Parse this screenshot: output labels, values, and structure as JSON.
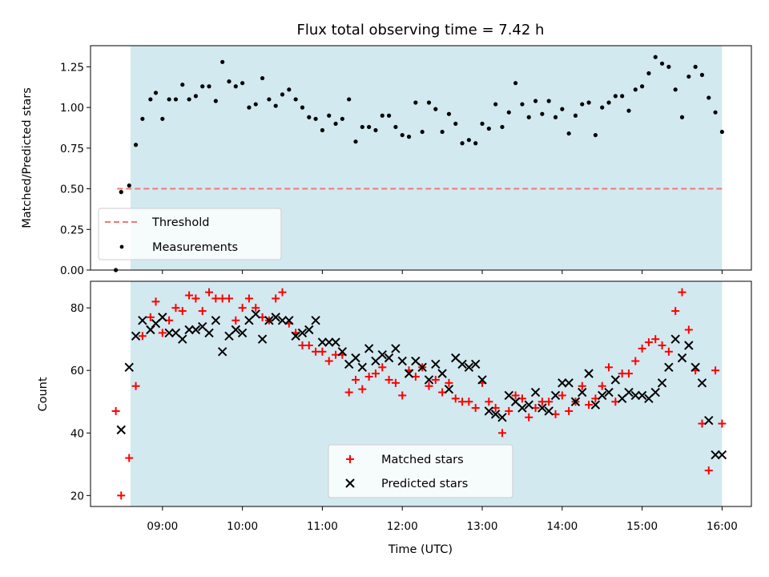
{
  "chart_data": [
    {
      "type": "scatter",
      "title": "Flux total observing time = 7.42 h",
      "ylabel": "Matched/Predicted stars",
      "xlabel": "",
      "x_axis": "time",
      "ylim": [
        0,
        1.38
      ],
      "yticks": [
        0.0,
        0.25,
        0.5,
        0.75,
        1.0,
        1.25
      ],
      "ytick_labels": [
        "0.00",
        "0.25",
        "0.50",
        "0.75",
        "1.00",
        "1.25"
      ],
      "shaded_interval": [
        "08:36",
        "16:00"
      ],
      "shade_color": "#d3e9f0",
      "legend_position": "lower left",
      "threshold": {
        "name": "Threshold",
        "value": 0.5,
        "x_range": [
          "08:26",
          "16:00"
        ],
        "color": "#f07878"
      },
      "series": [
        {
          "name": "Measurements",
          "marker": "dot",
          "color": "#000000",
          "x": [
            "08:25",
            "08:29",
            "08:35",
            "08:40",
            "08:45",
            "08:51",
            "08:55",
            "09:00",
            "09:05",
            "09:10",
            "09:15",
            "09:20",
            "09:25",
            "09:30",
            "09:35",
            "09:40",
            "09:45",
            "09:50",
            "09:55",
            "10:00",
            "10:05",
            "10:10",
            "10:15",
            "10:20",
            "10:25",
            "10:30",
            "10:35",
            "10:40",
            "10:45",
            "10:50",
            "10:55",
            "11:00",
            "11:05",
            "11:10",
            "11:15",
            "11:20",
            "11:25",
            "11:30",
            "11:35",
            "11:40",
            "11:45",
            "11:50",
            "11:55",
            "12:00",
            "12:05",
            "12:10",
            "12:15",
            "12:20",
            "12:25",
            "12:30",
            "12:35",
            "12:40",
            "12:45",
            "12:50",
            "12:55",
            "13:00",
            "13:05",
            "13:10",
            "13:15",
            "13:20",
            "13:25",
            "13:30",
            "13:35",
            "13:40",
            "13:45",
            "13:50",
            "13:55",
            "14:00",
            "14:05",
            "14:10",
            "14:15",
            "14:20",
            "14:25",
            "14:30",
            "14:35",
            "14:40",
            "14:45",
            "14:50",
            "14:55",
            "15:00",
            "15:05",
            "15:10",
            "15:15",
            "15:20",
            "15:25",
            "15:30",
            "15:35",
            "15:40",
            "15:45",
            "15:50",
            "15:55",
            "16:00"
          ],
          "y": [
            0.0,
            0.48,
            0.52,
            0.77,
            0.93,
            1.05,
            1.09,
            0.93,
            1.05,
            1.05,
            1.14,
            1.05,
            1.07,
            1.13,
            1.13,
            1.04,
            1.28,
            1.16,
            1.13,
            1.15,
            1.0,
            1.02,
            1.18,
            1.05,
            1.01,
            1.08,
            1.11,
            1.05,
            1.0,
            0.94,
            0.93,
            0.86,
            0.95,
            0.9,
            0.93,
            1.05,
            0.79,
            0.88,
            0.88,
            0.86,
            0.95,
            0.95,
            0.88,
            0.83,
            0.82,
            1.03,
            0.85,
            1.03,
            0.99,
            0.85,
            0.96,
            0.9,
            0.78,
            0.8,
            0.78,
            0.9,
            0.87,
            1.02,
            0.88,
            0.97,
            1.15,
            1.02,
            0.94,
            1.04,
            0.96,
            1.04,
            0.94,
            0.99,
            0.84,
            0.95,
            1.02,
            1.03,
            0.83,
            1.0,
            1.03,
            1.07,
            1.07,
            0.98,
            1.11,
            1.13,
            1.21,
            1.31,
            1.27,
            1.25,
            1.11,
            0.94,
            1.19,
            1.25,
            1.2,
            1.06,
            0.97,
            0.85
          ]
        }
      ]
    },
    {
      "type": "scatter",
      "title": "",
      "ylabel": "Count",
      "xlabel": "Time (UTC)",
      "x_axis": "time",
      "xlim": [
        "08:06",
        "16:22"
      ],
      "xticks": [
        "09:00",
        "10:00",
        "11:00",
        "12:00",
        "13:00",
        "14:00",
        "15:00",
        "16:00"
      ],
      "ylim": [
        16.5,
        88.5
      ],
      "yticks": [
        20,
        40,
        60,
        80
      ],
      "ytick_labels": [
        "20",
        "40",
        "60",
        "80"
      ],
      "shaded_interval": [
        "08:36",
        "16:00"
      ],
      "shade_color": "#d3e9f0",
      "legend_position": "lower center",
      "series": [
        {
          "name": "Matched stars",
          "marker": "plus",
          "color": "#ff0000",
          "x": [
            "08:25",
            "08:29",
            "08:35",
            "08:40",
            "08:45",
            "08:51",
            "08:55",
            "09:00",
            "09:05",
            "09:10",
            "09:15",
            "09:20",
            "09:25",
            "09:30",
            "09:35",
            "09:40",
            "09:45",
            "09:50",
            "09:55",
            "10:00",
            "10:05",
            "10:10",
            "10:15",
            "10:20",
            "10:25",
            "10:30",
            "10:35",
            "10:40",
            "10:45",
            "10:50",
            "10:55",
            "11:00",
            "11:05",
            "11:10",
            "11:15",
            "11:20",
            "11:25",
            "11:30",
            "11:35",
            "11:40",
            "11:45",
            "11:50",
            "11:55",
            "12:00",
            "12:05",
            "12:10",
            "12:15",
            "12:20",
            "12:25",
            "12:30",
            "12:35",
            "12:40",
            "12:45",
            "12:50",
            "12:55",
            "13:00",
            "13:05",
            "13:10",
            "13:15",
            "13:20",
            "13:25",
            "13:30",
            "13:35",
            "13:40",
            "13:45",
            "13:50",
            "13:55",
            "14:00",
            "14:05",
            "14:10",
            "14:15",
            "14:20",
            "14:25",
            "14:30",
            "14:35",
            "14:40",
            "14:45",
            "14:50",
            "14:55",
            "15:00",
            "15:05",
            "15:10",
            "15:15",
            "15:20",
            "15:25",
            "15:30",
            "15:35",
            "15:40",
            "15:45",
            "15:50",
            "15:55",
            "16:00"
          ],
          "y": [
            47,
            20,
            32,
            55,
            71,
            77,
            82,
            72,
            76,
            80,
            79,
            84,
            83,
            79,
            85,
            83,
            83,
            83,
            76,
            80,
            83,
            80,
            77,
            76,
            83,
            85,
            75,
            72,
            68,
            68,
            66,
            66,
            63,
            65,
            65,
            53,
            57,
            54,
            58,
            59,
            61,
            57,
            56,
            52,
            60,
            58,
            61,
            55,
            57,
            53,
            56,
            51,
            50,
            50,
            48,
            56,
            50,
            48,
            40,
            47,
            52,
            51,
            45,
            48,
            50,
            50,
            46,
            52,
            47,
            50,
            55,
            49,
            51,
            55,
            61,
            50,
            59,
            59,
            63,
            67,
            69,
            70,
            68,
            66,
            79,
            85,
            73,
            60,
            43,
            28,
            60,
            43
          ]
        },
        {
          "name": "Predicted stars",
          "marker": "x",
          "color": "#000000",
          "x": [
            "08:29",
            "08:35",
            "08:40",
            "08:45",
            "08:51",
            "08:55",
            "09:00",
            "09:05",
            "09:10",
            "09:15",
            "09:20",
            "09:25",
            "09:30",
            "09:35",
            "09:40",
            "09:45",
            "09:50",
            "09:55",
            "10:00",
            "10:05",
            "10:10",
            "10:15",
            "10:20",
            "10:25",
            "10:30",
            "10:35",
            "10:40",
            "10:45",
            "10:50",
            "10:55",
            "11:00",
            "11:05",
            "11:10",
            "11:15",
            "11:20",
            "11:25",
            "11:30",
            "11:35",
            "11:40",
            "11:45",
            "11:50",
            "11:55",
            "12:00",
            "12:05",
            "12:10",
            "12:15",
            "12:20",
            "12:25",
            "12:30",
            "12:35",
            "12:40",
            "12:45",
            "12:50",
            "12:55",
            "13:00",
            "13:05",
            "13:10",
            "13:15",
            "13:20",
            "13:25",
            "13:30",
            "13:35",
            "13:40",
            "13:45",
            "13:50",
            "13:55",
            "14:00",
            "14:05",
            "14:10",
            "14:15",
            "14:20",
            "14:25",
            "14:30",
            "14:35",
            "14:40",
            "14:45",
            "14:50",
            "14:55",
            "15:00",
            "15:05",
            "15:10",
            "15:15",
            "15:20",
            "15:25",
            "15:30",
            "15:35",
            "15:40",
            "15:45",
            "15:50",
            "15:55",
            "16:00"
          ],
          "y": [
            41,
            61,
            71,
            76,
            73,
            75,
            77,
            72,
            72,
            70,
            73,
            73,
            74,
            72,
            76,
            66,
            71,
            73,
            72,
            76,
            78,
            70,
            76,
            77,
            76,
            76,
            71,
            72,
            73,
            76,
            69,
            69,
            69,
            66,
            62,
            64,
            61,
            67,
            63,
            65,
            64,
            67,
            63,
            59,
            63,
            61,
            57,
            62,
            59,
            54,
            64,
            62,
            61,
            62,
            57,
            47,
            46,
            45,
            52,
            50,
            48,
            49,
            53,
            48,
            47,
            52,
            56,
            56,
            50,
            53,
            59,
            49,
            52,
            53,
            57,
            51,
            53,
            52,
            52,
            51,
            53,
            56,
            61,
            70,
            64,
            68,
            61,
            56,
            44,
            33,
            33
          ]
        }
      ]
    }
  ]
}
